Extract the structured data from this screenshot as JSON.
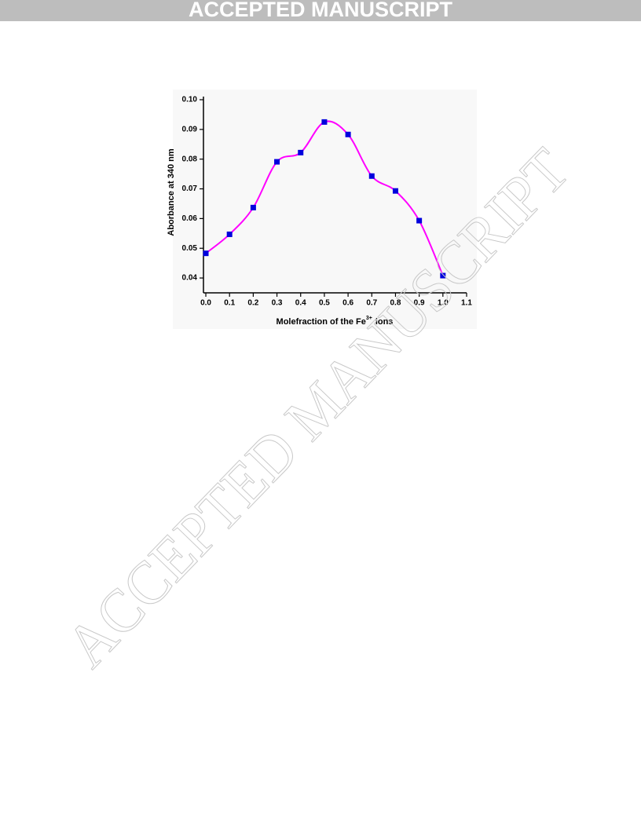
{
  "header": {
    "banner": "ACCEPTED MANUSCRIPT"
  },
  "watermark": "ACCEPTED MANUSCRIPT",
  "chart_data": {
    "type": "line",
    "xlabel": {
      "text": "Molefraction of the Fe",
      "superscript": "3+",
      "suffix": "ions"
    },
    "ylabel": "Aborbance at 340 nm",
    "x": [
      0,
      0.1,
      0.2,
      0.3,
      0.4,
      0.5,
      0.6,
      0.7,
      0.8,
      0.9,
      1
    ],
    "series": [
      {
        "color": "#ff00ff",
        "marker_color": "#0000dd",
        "values": [
          0.0483,
          0.0547,
          0.0637,
          0.0791,
          0.0822,
          0.0925,
          0.0883,
          0.0743,
          0.0693,
          0.0593,
          0.0408
        ]
      }
    ],
    "xlim": [
      -0.01,
      1.1
    ],
    "ylim": [
      0.035,
      0.1
    ],
    "xticks": [
      {
        "value": 0,
        "label": "0.0"
      },
      0.1,
      0.2,
      0.3,
      0.4,
      0.5,
      0.6,
      0.7,
      0.8,
      0.9,
      {
        "value": 1,
        "label": "1.0"
      },
      1.1
    ],
    "yticks": [
      0.04,
      0.05,
      0.06,
      0.07,
      0.08,
      0.09,
      {
        "value": 0.1,
        "label": "0.10"
      }
    ],
    "smooth": true
  }
}
